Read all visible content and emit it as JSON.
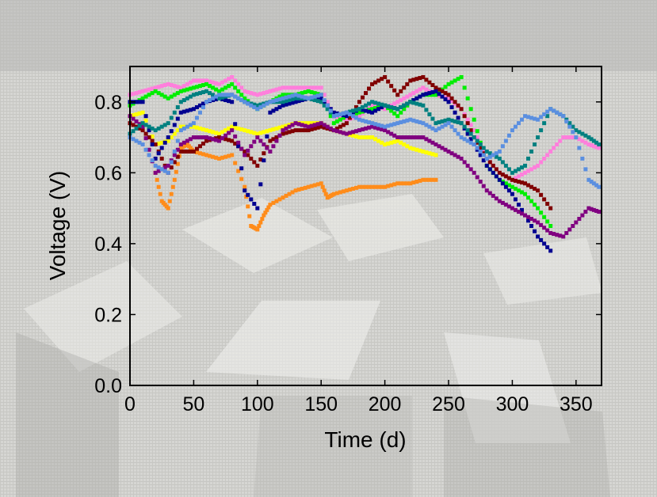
{
  "chart_data": {
    "type": "scatter",
    "title": "",
    "xlabel": "Time (d)",
    "ylabel": "Voltage (V)",
    "xlim": [
      0,
      370
    ],
    "ylim": [
      0.0,
      0.9
    ],
    "xticks": [
      0,
      50,
      100,
      150,
      200,
      250,
      300,
      350
    ],
    "yticks": [
      0.0,
      0.2,
      0.4,
      0.6,
      0.8
    ],
    "xtick_labels": [
      "0",
      "50",
      "100",
      "150",
      "200",
      "250",
      "300",
      "350"
    ],
    "ytick_labels": [
      "0.0",
      "0.2",
      "0.4",
      "0.6",
      "0.8"
    ],
    "grid": false,
    "legend": "none",
    "series": [
      {
        "color": "#ff7fdc",
        "points": [
          [
            0,
            0.82
          ],
          [
            10,
            0.83
          ],
          [
            20,
            0.84
          ],
          [
            30,
            0.85
          ],
          [
            40,
            0.84
          ],
          [
            50,
            0.86
          ],
          [
            60,
            0.86
          ],
          [
            70,
            0.85
          ],
          [
            80,
            0.87
          ],
          [
            90,
            0.83
          ],
          [
            100,
            0.82
          ],
          [
            110,
            0.83
          ],
          [
            120,
            0.84
          ],
          [
            130,
            0.84
          ],
          [
            140,
            0.84
          ],
          [
            150,
            0.84
          ],
          [
            160,
            0.76
          ],
          [
            170,
            0.75
          ],
          [
            180,
            0.76
          ],
          [
            190,
            0.79
          ],
          [
            200,
            0.78
          ],
          [
            210,
            0.8
          ],
          [
            220,
            0.82
          ],
          [
            230,
            0.84
          ],
          [
            240,
            0.82
          ],
          [
            250,
            0.81
          ],
          [
            260,
            0.78
          ],
          [
            270,
            0.72
          ],
          [
            280,
            0.64
          ],
          [
            290,
            0.6
          ],
          [
            300,
            0.58
          ],
          [
            310,
            0.6
          ],
          [
            320,
            0.62
          ],
          [
            330,
            0.66
          ],
          [
            340,
            0.7
          ],
          [
            350,
            0.7
          ],
          [
            360,
            0.68
          ],
          [
            368,
            0.67
          ]
        ]
      },
      {
        "color": "#00ee00",
        "points": [
          [
            0,
            0.79
          ],
          [
            10,
            0.81
          ],
          [
            20,
            0.83
          ],
          [
            30,
            0.81
          ],
          [
            40,
            0.83
          ],
          [
            50,
            0.84
          ],
          [
            60,
            0.85
          ],
          [
            70,
            0.83
          ],
          [
            80,
            0.85
          ],
          [
            90,
            0.81
          ],
          [
            100,
            0.78
          ],
          [
            110,
            0.8
          ],
          [
            120,
            0.82
          ],
          [
            130,
            0.82
          ],
          [
            140,
            0.83
          ],
          [
            150,
            0.82
          ],
          [
            160,
            0.74
          ],
          [
            170,
            0.76
          ],
          [
            180,
            0.77
          ],
          [
            190,
            0.78
          ],
          [
            200,
            0.79
          ],
          [
            210,
            0.76
          ],
          [
            220,
            0.8
          ],
          [
            230,
            0.82
          ],
          [
            240,
            0.82
          ],
          [
            250,
            0.85
          ],
          [
            260,
            0.87
          ],
          [
            270,
            0.75
          ],
          [
            280,
            0.62
          ],
          [
            290,
            0.58
          ],
          [
            300,
            0.56
          ],
          [
            310,
            0.54
          ],
          [
            320,
            0.5
          ],
          [
            330,
            0.45
          ]
        ]
      },
      {
        "color": "#ffff00",
        "points": [
          [
            0,
            0.76
          ],
          [
            10,
            0.77
          ],
          [
            20,
            0.68
          ],
          [
            30,
            0.69
          ],
          [
            40,
            0.73
          ],
          [
            50,
            0.73
          ],
          [
            60,
            0.72
          ],
          [
            70,
            0.71
          ],
          [
            80,
            0.73
          ],
          [
            90,
            0.72
          ],
          [
            100,
            0.71
          ],
          [
            110,
            0.72
          ],
          [
            120,
            0.73
          ],
          [
            130,
            0.74
          ],
          [
            140,
            0.74
          ],
          [
            150,
            0.74
          ],
          [
            160,
            0.72
          ],
          [
            170,
            0.71
          ],
          [
            180,
            0.7
          ],
          [
            190,
            0.7
          ],
          [
            200,
            0.68
          ],
          [
            210,
            0.69
          ],
          [
            220,
            0.67
          ],
          [
            230,
            0.66
          ],
          [
            240,
            0.65
          ]
        ]
      },
      {
        "color": "#ff8c1a",
        "points": [
          [
            20,
            0.6
          ],
          [
            25,
            0.52
          ],
          [
            30,
            0.5
          ],
          [
            35,
            0.58
          ],
          [
            40,
            0.67
          ],
          [
            45,
            0.68
          ],
          [
            50,
            0.66
          ],
          [
            60,
            0.65
          ],
          [
            70,
            0.64
          ],
          [
            80,
            0.65
          ],
          [
            90,
            0.56
          ],
          [
            95,
            0.45
          ],
          [
            100,
            0.44
          ],
          [
            105,
            0.48
          ],
          [
            110,
            0.51
          ],
          [
            120,
            0.53
          ],
          [
            130,
            0.55
          ],
          [
            140,
            0.56
          ],
          [
            150,
            0.57
          ],
          [
            155,
            0.53
          ],
          [
            160,
            0.54
          ],
          [
            170,
            0.55
          ],
          [
            180,
            0.56
          ],
          [
            190,
            0.56
          ],
          [
            200,
            0.56
          ],
          [
            210,
            0.57
          ],
          [
            220,
            0.57
          ],
          [
            230,
            0.58
          ],
          [
            240,
            0.58
          ]
        ]
      },
      {
        "color": "#800000",
        "points": [
          [
            0,
            0.74
          ],
          [
            10,
            0.72
          ],
          [
            20,
            0.68
          ],
          [
            30,
            0.6
          ],
          [
            40,
            0.66
          ],
          [
            50,
            0.66
          ],
          [
            60,
            0.69
          ],
          [
            70,
            0.7
          ],
          [
            80,
            0.69
          ],
          [
            90,
            0.66
          ],
          [
            100,
            0.62
          ],
          [
            110,
            0.69
          ],
          [
            120,
            0.71
          ],
          [
            130,
            0.72
          ],
          [
            140,
            0.72
          ],
          [
            150,
            0.73
          ],
          [
            160,
            0.72
          ],
          [
            170,
            0.74
          ],
          [
            180,
            0.8
          ],
          [
            190,
            0.85
          ],
          [
            200,
            0.87
          ],
          [
            210,
            0.82
          ],
          [
            220,
            0.86
          ],
          [
            230,
            0.87
          ],
          [
            240,
            0.84
          ],
          [
            250,
            0.82
          ],
          [
            260,
            0.78
          ],
          [
            270,
            0.7
          ],
          [
            280,
            0.64
          ],
          [
            290,
            0.6
          ],
          [
            300,
            0.58
          ],
          [
            310,
            0.57
          ],
          [
            320,
            0.55
          ],
          [
            330,
            0.5
          ]
        ]
      },
      {
        "color": "#000090",
        "points": [
          [
            0,
            0.8
          ],
          [
            10,
            0.8
          ],
          [
            20,
            0.64
          ],
          [
            30,
            0.7
          ],
          [
            40,
            0.77
          ],
          [
            50,
            0.78
          ],
          [
            60,
            0.8
          ],
          [
            70,
            0.81
          ],
          [
            80,
            0.8
          ],
          [
            90,
            0.55
          ],
          [
            100,
            0.5
          ],
          [
            110,
            0.77
          ],
          [
            120,
            0.79
          ],
          [
            130,
            0.8
          ],
          [
            140,
            0.81
          ],
          [
            150,
            0.81
          ],
          [
            160,
            0.77
          ],
          [
            170,
            0.76
          ],
          [
            180,
            0.78
          ],
          [
            190,
            0.77
          ],
          [
            200,
            0.79
          ],
          [
            210,
            0.78
          ],
          [
            220,
            0.8
          ],
          [
            230,
            0.82
          ],
          [
            240,
            0.83
          ],
          [
            250,
            0.8
          ],
          [
            260,
            0.74
          ],
          [
            270,
            0.68
          ],
          [
            280,
            0.62
          ],
          [
            290,
            0.58
          ],
          [
            300,
            0.54
          ],
          [
            310,
            0.48
          ],
          [
            320,
            0.42
          ],
          [
            330,
            0.38
          ]
        ]
      },
      {
        "color": "#800080",
        "points": [
          [
            0,
            0.76
          ],
          [
            10,
            0.73
          ],
          [
            20,
            0.6
          ],
          [
            30,
            0.62
          ],
          [
            40,
            0.68
          ],
          [
            50,
            0.7
          ],
          [
            60,
            0.7
          ],
          [
            70,
            0.69
          ],
          [
            80,
            0.72
          ],
          [
            90,
            0.65
          ],
          [
            100,
            0.7
          ],
          [
            110,
            0.66
          ],
          [
            120,
            0.72
          ],
          [
            130,
            0.74
          ],
          [
            140,
            0.73
          ],
          [
            150,
            0.74
          ],
          [
            160,
            0.72
          ],
          [
            170,
            0.71
          ],
          [
            180,
            0.72
          ],
          [
            190,
            0.73
          ],
          [
            200,
            0.72
          ],
          [
            210,
            0.7
          ],
          [
            220,
            0.7
          ],
          [
            230,
            0.7
          ],
          [
            240,
            0.68
          ],
          [
            250,
            0.66
          ],
          [
            260,
            0.64
          ],
          [
            270,
            0.6
          ],
          [
            280,
            0.55
          ],
          [
            290,
            0.52
          ],
          [
            300,
            0.5
          ],
          [
            310,
            0.48
          ],
          [
            320,
            0.46
          ],
          [
            330,
            0.43
          ],
          [
            340,
            0.42
          ],
          [
            350,
            0.46
          ],
          [
            360,
            0.5
          ],
          [
            368,
            0.49
          ]
        ]
      },
      {
        "color": "#008080",
        "points": [
          [
            0,
            0.71
          ],
          [
            10,
            0.74
          ],
          [
            20,
            0.72
          ],
          [
            30,
            0.74
          ],
          [
            40,
            0.8
          ],
          [
            50,
            0.82
          ],
          [
            60,
            0.83
          ],
          [
            70,
            0.81
          ],
          [
            80,
            0.82
          ],
          [
            90,
            0.8
          ],
          [
            100,
            0.79
          ],
          [
            110,
            0.8
          ],
          [
            120,
            0.8
          ],
          [
            130,
            0.81
          ],
          [
            140,
            0.81
          ],
          [
            150,
            0.8
          ],
          [
            160,
            0.76
          ],
          [
            170,
            0.77
          ],
          [
            180,
            0.78
          ],
          [
            190,
            0.8
          ],
          [
            200,
            0.79
          ],
          [
            210,
            0.78
          ],
          [
            220,
            0.8
          ],
          [
            230,
            0.79
          ],
          [
            240,
            0.74
          ],
          [
            250,
            0.75
          ],
          [
            260,
            0.74
          ],
          [
            270,
            0.7
          ],
          [
            280,
            0.66
          ],
          [
            290,
            0.64
          ],
          [
            300,
            0.6
          ],
          [
            310,
            0.62
          ],
          [
            320,
            0.7
          ],
          [
            330,
            0.78
          ],
          [
            340,
            0.76
          ],
          [
            350,
            0.72
          ],
          [
            360,
            0.7
          ],
          [
            368,
            0.68
          ]
        ]
      },
      {
        "color": "#5b8fe0",
        "points": [
          [
            0,
            0.7
          ],
          [
            10,
            0.68
          ],
          [
            20,
            0.62
          ],
          [
            30,
            0.6
          ],
          [
            40,
            0.72
          ],
          [
            50,
            0.74
          ],
          [
            60,
            0.8
          ],
          [
            70,
            0.82
          ],
          [
            80,
            0.82
          ],
          [
            90,
            0.8
          ],
          [
            100,
            0.78
          ],
          [
            110,
            0.8
          ],
          [
            120,
            0.81
          ],
          [
            130,
            0.82
          ],
          [
            140,
            0.81
          ],
          [
            150,
            0.82
          ],
          [
            160,
            0.76
          ],
          [
            170,
            0.77
          ],
          [
            180,
            0.75
          ],
          [
            190,
            0.74
          ],
          [
            200,
            0.73
          ],
          [
            210,
            0.74
          ],
          [
            220,
            0.75
          ],
          [
            230,
            0.74
          ],
          [
            240,
            0.72
          ],
          [
            250,
            0.74
          ],
          [
            260,
            0.7
          ],
          [
            270,
            0.68
          ],
          [
            280,
            0.64
          ],
          [
            290,
            0.66
          ],
          [
            300,
            0.72
          ],
          [
            310,
            0.76
          ],
          [
            320,
            0.75
          ],
          [
            330,
            0.78
          ],
          [
            340,
            0.76
          ],
          [
            350,
            0.7
          ],
          [
            360,
            0.58
          ],
          [
            368,
            0.56
          ]
        ]
      }
    ]
  }
}
